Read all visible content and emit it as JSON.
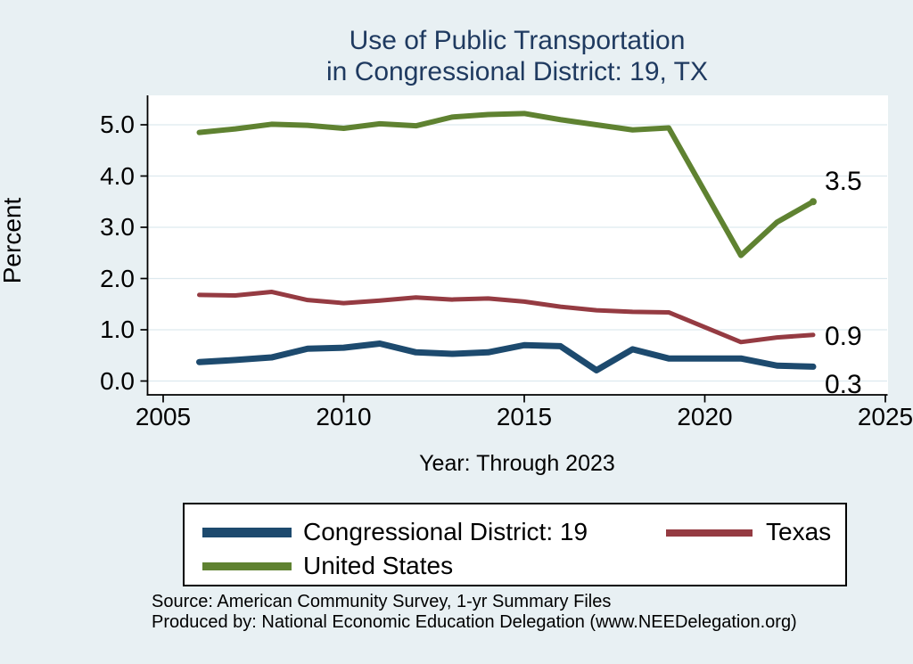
{
  "title": {
    "line1": "Use of Public Transportation",
    "line2": "in Congressional District: 19, TX"
  },
  "chart_data": {
    "type": "line",
    "x": [
      2006,
      2007,
      2008,
      2009,
      2010,
      2011,
      2012,
      2013,
      2014,
      2015,
      2016,
      2017,
      2018,
      2019,
      2021,
      2022,
      2023
    ],
    "series": [
      {
        "name": "Congressional District: 19",
        "color": "#1d4a6e",
        "line_width": 7,
        "values": [
          0.37,
          0.41,
          0.46,
          0.63,
          0.65,
          0.73,
          0.56,
          0.53,
          0.56,
          0.7,
          0.68,
          0.21,
          0.62,
          0.44,
          0.44,
          0.3,
          0.28
        ],
        "end_label": "0.3",
        "end_marker": false
      },
      {
        "name": "Texas",
        "color": "#953b42",
        "line_width": 5,
        "values": [
          1.68,
          1.67,
          1.74,
          1.58,
          1.52,
          1.57,
          1.63,
          1.59,
          1.61,
          1.55,
          1.45,
          1.38,
          1.35,
          1.34,
          0.76,
          0.85,
          0.9
        ],
        "end_label": "0.9",
        "end_marker": false
      },
      {
        "name": "United States",
        "color": "#5f8231",
        "line_width": 6,
        "values": [
          4.85,
          4.92,
          5.01,
          4.99,
          4.93,
          5.02,
          4.98,
          5.15,
          5.2,
          5.22,
          5.1,
          5.0,
          4.9,
          4.94,
          2.45,
          3.1,
          3.5
        ],
        "end_label": "3.5",
        "end_marker": true
      }
    ],
    "title": "Use of Public Transportation in Congressional District: 19, TX",
    "xlabel": "Year: Through 2023",
    "ylabel": "Percent",
    "xlim": [
      2005,
      2025
    ],
    "ylim": [
      0.0,
      5.0
    ],
    "x_ticks": [
      2005,
      2010,
      2015,
      2020,
      2025
    ],
    "x_tick_labels": [
      "2005",
      "2010",
      "2015",
      "2020",
      "2025"
    ],
    "y_ticks": [
      0.0,
      1.0,
      2.0,
      3.0,
      4.0,
      5.0
    ],
    "y_tick_labels": [
      "0.0",
      "1.0",
      "2.0",
      "3.0",
      "4.0",
      "5.0"
    ],
    "grid": "horizontal",
    "note": "no data point for 2020; lines connect 2019 to 2021",
    "legend_position": "bottom"
  },
  "footer": {
    "line1": "Source: American Community Survey, 1-yr Summary Files",
    "line2": "Produced by: National Economic Education Delegation (www.NEEDelegation.org)"
  },
  "colors": {
    "background": "#e8f0f3",
    "plot_background": "#ffffff",
    "gridline": "#dde9ef",
    "title_text": "#1f3a60",
    "axis": "#000000"
  }
}
